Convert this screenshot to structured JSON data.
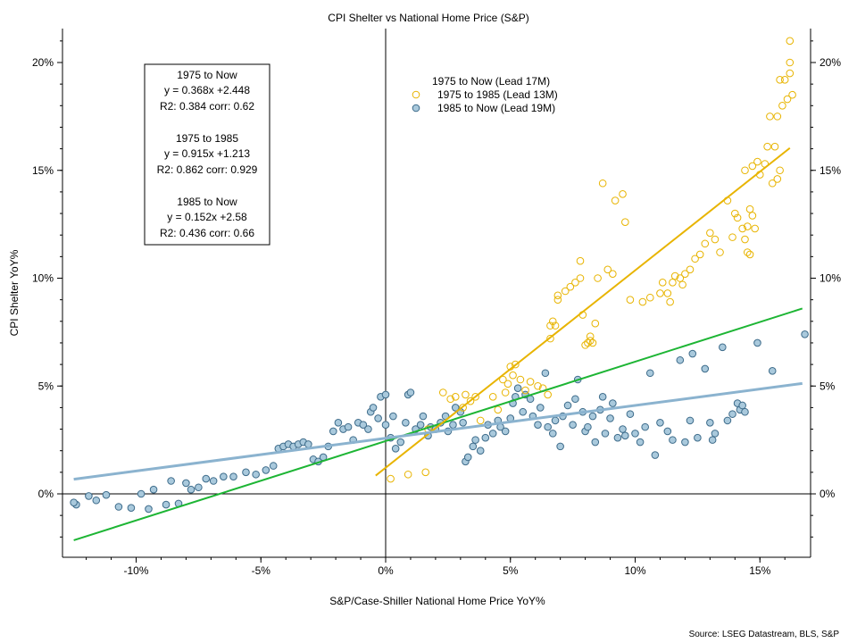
{
  "chart_data": {
    "type": "scatter",
    "title": "CPI Shelter vs National Home Price (S&P)",
    "xlabel": "S&P/Case-Shiller National Home Price YoY%",
    "ylabel": "CPI Shelter YoY%",
    "source": "Source: LSEG Datastream, BLS, S&P",
    "xlim": [
      -13,
      17
    ],
    "ylim": [
      -2.8,
      21.5
    ],
    "x_ticks": [
      -10,
      -5,
      0,
      5,
      10,
      15
    ],
    "x_tick_labels": [
      "-10%",
      "-5%",
      "0%",
      "5%",
      "10%",
      "15%"
    ],
    "y_ticks": [
      0,
      5,
      10,
      15,
      20
    ],
    "y_tick_labels": [
      "0%",
      "5%",
      "10%",
      "15%",
      "20%"
    ],
    "grid": false,
    "legend": {
      "placement": "top-center",
      "header": "1975 to Now (Lead 17M)",
      "entries": [
        "1975 to 1985 (Lead 13M)",
        "1985 to Now (Lead 19M)"
      ]
    },
    "stats_box": {
      "lines": [
        "1975 to Now",
        "y = 0.368x +2.448",
        "R2: 0.384  corr: 0.62",
        "",
        "1975 to 1985",
        "y = 0.915x +1.213",
        "R2: 0.862  corr: 0.929",
        "",
        "1985 to Now",
        "y = 0.152x +2.58",
        "R2: 0.436  corr: 0.66"
      ]
    },
    "colors": {
      "series_1975_1985": "#e8b400",
      "series_1985_now_fill": "#a9c9dc",
      "series_1985_now_stroke": "#3d6b8a",
      "fit_1975_now": "#1db534",
      "fit_1975_1985": "#e8b400",
      "fit_1985_now": "#8bb3cf"
    },
    "fit_lines": [
      {
        "name": "1975 to Now",
        "slope": 0.368,
        "intercept": 2.448,
        "x_range": [
          -12.5,
          16.7
        ],
        "color_key": "fit_1975_now"
      },
      {
        "name": "1975 to 1985",
        "slope": 0.915,
        "intercept": 1.213,
        "x_range": [
          -0.4,
          16.2
        ],
        "color_key": "fit_1975_1985"
      },
      {
        "name": "1985 to Now",
        "slope": 0.152,
        "intercept": 2.58,
        "x_range": [
          -12.5,
          16.7
        ],
        "color_key": "fit_1985_now"
      }
    ],
    "series": [
      {
        "name": "1975 to 1985 (Lead 13M)",
        "points": [
          [
            0.2,
            0.7
          ],
          [
            0.9,
            0.9
          ],
          [
            1.6,
            1.0
          ],
          [
            1.7,
            3.0
          ],
          [
            2.3,
            4.7
          ],
          [
            2.6,
            4.4
          ],
          [
            3.2,
            4.6
          ],
          [
            3.4,
            4.3
          ],
          [
            3.6,
            4.5
          ],
          [
            3.1,
            4.0
          ],
          [
            2.8,
            4.5
          ],
          [
            3.8,
            3.4
          ],
          [
            4.3,
            4.5
          ],
          [
            4.5,
            3.9
          ],
          [
            4.8,
            4.7
          ],
          [
            4.7,
            5.3
          ],
          [
            4.9,
            5.1
          ],
          [
            5.0,
            5.9
          ],
          [
            5.2,
            6.0
          ],
          [
            5.1,
            5.5
          ],
          [
            5.4,
            5.3
          ],
          [
            5.6,
            4.8
          ],
          [
            5.8,
            5.2
          ],
          [
            6.1,
            5.0
          ],
          [
            6.3,
            4.9
          ],
          [
            6.5,
            4.6
          ],
          [
            6.6,
            7.2
          ],
          [
            6.8,
            7.8
          ],
          [
            6.6,
            7.8
          ],
          [
            6.7,
            8.0
          ],
          [
            6.9,
            9.0
          ],
          [
            6.9,
            9.2
          ],
          [
            7.2,
            9.4
          ],
          [
            7.4,
            9.6
          ],
          [
            7.6,
            9.8
          ],
          [
            7.8,
            10.0
          ],
          [
            7.8,
            10.8
          ],
          [
            7.9,
            8.3
          ],
          [
            8.1,
            7.0
          ],
          [
            8.2,
            7.3
          ],
          [
            8.2,
            7.1
          ],
          [
            8.3,
            7.0
          ],
          [
            8.0,
            6.9
          ],
          [
            8.4,
            7.9
          ],
          [
            8.5,
            10.0
          ],
          [
            8.7,
            14.4
          ],
          [
            8.9,
            10.4
          ],
          [
            9.1,
            10.2
          ],
          [
            9.2,
            13.6
          ],
          [
            9.5,
            13.9
          ],
          [
            9.6,
            12.6
          ],
          [
            9.8,
            9.0
          ],
          [
            10.3,
            8.9
          ],
          [
            10.6,
            9.1
          ],
          [
            11.0,
            9.3
          ],
          [
            11.3,
            9.3
          ],
          [
            11.1,
            9.8
          ],
          [
            11.4,
            8.9
          ],
          [
            11.5,
            9.8
          ],
          [
            11.6,
            10.1
          ],
          [
            11.8,
            10.0
          ],
          [
            11.9,
            9.7
          ],
          [
            12.0,
            10.2
          ],
          [
            12.2,
            10.4
          ],
          [
            12.4,
            10.9
          ],
          [
            12.6,
            11.1
          ],
          [
            12.8,
            11.6
          ],
          [
            13.0,
            12.1
          ],
          [
            13.2,
            11.8
          ],
          [
            13.4,
            11.2
          ],
          [
            13.7,
            13.6
          ],
          [
            13.9,
            11.9
          ],
          [
            14.0,
            13.0
          ],
          [
            14.1,
            12.8
          ],
          [
            14.3,
            12.3
          ],
          [
            14.4,
            11.8
          ],
          [
            14.5,
            11.2
          ],
          [
            14.6,
            11.1
          ],
          [
            14.6,
            13.2
          ],
          [
            14.7,
            12.9
          ],
          [
            14.5,
            12.4
          ],
          [
            14.8,
            12.3
          ],
          [
            14.7,
            15.2
          ],
          [
            14.4,
            15.0
          ],
          [
            14.9,
            15.4
          ],
          [
            15.0,
            14.8
          ],
          [
            15.2,
            15.3
          ],
          [
            15.3,
            16.1
          ],
          [
            15.4,
            17.5
          ],
          [
            15.5,
            14.4
          ],
          [
            15.6,
            16.1
          ],
          [
            15.7,
            14.6
          ],
          [
            15.8,
            15.0
          ],
          [
            15.9,
            18.0
          ],
          [
            16.0,
            19.2
          ],
          [
            16.1,
            18.3
          ],
          [
            15.8,
            19.2
          ],
          [
            16.2,
            19.5
          ],
          [
            16.2,
            20.0
          ],
          [
            16.2,
            21.0
          ],
          [
            16.3,
            18.5
          ],
          [
            15.7,
            17.5
          ]
        ]
      },
      {
        "name": "1985 to Now (Lead 19M)",
        "points": [
          [
            -12.4,
            -0.5
          ],
          [
            -12.5,
            -0.4
          ],
          [
            -11.9,
            -0.1
          ],
          [
            -11.6,
            -0.3
          ],
          [
            -11.2,
            -0.05
          ],
          [
            -10.7,
            -0.6
          ],
          [
            -10.2,
            -0.65
          ],
          [
            -9.8,
            0.0
          ],
          [
            -9.5,
            -0.7
          ],
          [
            -9.3,
            0.2
          ],
          [
            -8.8,
            -0.5
          ],
          [
            -8.6,
            0.6
          ],
          [
            -8.3,
            -0.45
          ],
          [
            -8.0,
            0.5
          ],
          [
            -7.8,
            0.2
          ],
          [
            -7.5,
            0.3
          ],
          [
            -7.2,
            0.7
          ],
          [
            -6.9,
            0.6
          ],
          [
            -6.5,
            0.8
          ],
          [
            -6.1,
            0.8
          ],
          [
            -5.6,
            1.0
          ],
          [
            -5.2,
            0.9
          ],
          [
            -4.8,
            1.1
          ],
          [
            -4.5,
            1.3
          ],
          [
            -4.3,
            2.1
          ],
          [
            -4.1,
            2.2
          ],
          [
            -3.9,
            2.3
          ],
          [
            -3.7,
            2.2
          ],
          [
            -3.5,
            2.3
          ],
          [
            -3.3,
            2.4
          ],
          [
            -3.1,
            2.3
          ],
          [
            -2.9,
            1.6
          ],
          [
            -2.7,
            1.5
          ],
          [
            -2.5,
            1.7
          ],
          [
            -2.3,
            2.2
          ],
          [
            -2.1,
            2.9
          ],
          [
            -1.9,
            3.3
          ],
          [
            -1.7,
            3.0
          ],
          [
            -1.5,
            3.1
          ],
          [
            -1.3,
            2.5
          ],
          [
            -1.1,
            3.3
          ],
          [
            -0.9,
            3.2
          ],
          [
            -0.7,
            3.0
          ],
          [
            -0.6,
            3.8
          ],
          [
            -0.5,
            4.0
          ],
          [
            -0.3,
            3.5
          ],
          [
            -0.2,
            4.5
          ],
          [
            0.0,
            4.6
          ],
          [
            0.0,
            3.2
          ],
          [
            0.2,
            2.6
          ],
          [
            0.3,
            3.6
          ],
          [
            0.4,
            2.1
          ],
          [
            0.6,
            2.4
          ],
          [
            0.8,
            3.3
          ],
          [
            0.9,
            4.6
          ],
          [
            1.0,
            4.7
          ],
          [
            1.2,
            3.0
          ],
          [
            1.4,
            3.2
          ],
          [
            1.5,
            3.6
          ],
          [
            1.7,
            2.7
          ],
          [
            1.8,
            3.1
          ],
          [
            2.0,
            3.0
          ],
          [
            2.2,
            3.3
          ],
          [
            2.4,
            3.6
          ],
          [
            2.5,
            2.9
          ],
          [
            2.7,
            3.2
          ],
          [
            2.8,
            4.0
          ],
          [
            3.0,
            3.8
          ],
          [
            3.1,
            3.3
          ],
          [
            3.2,
            1.5
          ],
          [
            3.3,
            1.7
          ],
          [
            3.5,
            2.2
          ],
          [
            3.6,
            2.5
          ],
          [
            3.8,
            2.0
          ],
          [
            4.0,
            2.6
          ],
          [
            4.1,
            3.2
          ],
          [
            4.3,
            2.8
          ],
          [
            4.5,
            3.4
          ],
          [
            4.6,
            3.1
          ],
          [
            4.8,
            2.9
          ],
          [
            5.0,
            3.5
          ],
          [
            5.1,
            4.2
          ],
          [
            5.2,
            4.5
          ],
          [
            5.3,
            4.9
          ],
          [
            5.5,
            3.8
          ],
          [
            5.6,
            4.6
          ],
          [
            5.8,
            4.4
          ],
          [
            5.9,
            3.6
          ],
          [
            6.1,
            3.2
          ],
          [
            6.2,
            4.0
          ],
          [
            6.4,
            5.6
          ],
          [
            6.5,
            3.1
          ],
          [
            6.7,
            2.8
          ],
          [
            6.8,
            3.4
          ],
          [
            7.0,
            2.2
          ],
          [
            7.1,
            3.6
          ],
          [
            7.3,
            4.1
          ],
          [
            7.5,
            3.2
          ],
          [
            7.6,
            4.4
          ],
          [
            7.7,
            5.3
          ],
          [
            7.9,
            3.8
          ],
          [
            8.0,
            2.9
          ],
          [
            8.1,
            3.1
          ],
          [
            8.3,
            3.6
          ],
          [
            8.4,
            2.4
          ],
          [
            8.6,
            3.9
          ],
          [
            8.7,
            4.5
          ],
          [
            8.8,
            2.8
          ],
          [
            9.0,
            3.5
          ],
          [
            9.1,
            4.2
          ],
          [
            9.3,
            2.6
          ],
          [
            9.5,
            3.0
          ],
          [
            9.6,
            2.7
          ],
          [
            9.8,
            3.7
          ],
          [
            10.0,
            2.8
          ],
          [
            10.2,
            2.4
          ],
          [
            10.4,
            3.1
          ],
          [
            10.6,
            5.6
          ],
          [
            10.8,
            1.8
          ],
          [
            11.0,
            3.3
          ],
          [
            11.3,
            2.9
          ],
          [
            11.5,
            2.5
          ],
          [
            11.8,
            6.2
          ],
          [
            12.0,
            2.4
          ],
          [
            12.2,
            3.4
          ],
          [
            12.3,
            6.5
          ],
          [
            12.5,
            2.6
          ],
          [
            12.8,
            5.8
          ],
          [
            13.0,
            3.3
          ],
          [
            13.1,
            2.5
          ],
          [
            13.2,
            2.8
          ],
          [
            13.5,
            6.8
          ],
          [
            13.7,
            3.4
          ],
          [
            13.9,
            3.7
          ],
          [
            14.1,
            4.2
          ],
          [
            14.2,
            3.9
          ],
          [
            14.3,
            4.1
          ],
          [
            14.4,
            3.8
          ],
          [
            14.9,
            7.0
          ],
          [
            15.5,
            5.7
          ],
          [
            16.8,
            7.4
          ]
        ]
      }
    ]
  }
}
